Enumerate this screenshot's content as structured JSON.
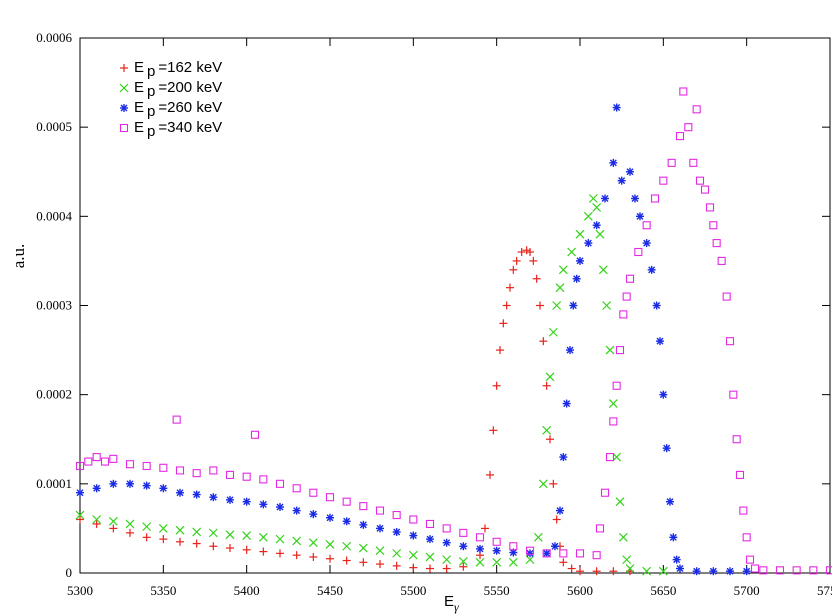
{
  "chart_data": {
    "type": "scatter",
    "xlabel": "E",
    "xlabel_sub": "γ",
    "ylabel": "a.u.",
    "xlim": [
      5300,
      5750
    ],
    "ylim": [
      0,
      0.0006
    ],
    "x_ticks": [
      "5300",
      "5350",
      "5400",
      "5450",
      "5500",
      "5550",
      "5600",
      "5650",
      "5700",
      "5750"
    ],
    "y_ticks": [
      "0",
      "0.0001",
      "0.0002",
      "0.0003",
      "0.0004",
      "0.0005",
      "0.0006"
    ],
    "grid": false,
    "legend_position": "top-left",
    "series": [
      {
        "name": "=162 keV",
        "legend_main": "E",
        "legend_sub": "p",
        "legend_suffix": "=162 keV",
        "color": "#e8211b",
        "marker": "plus",
        "points": [
          [
            5300,
            6e-05
          ],
          [
            5310,
            5.5e-05
          ],
          [
            5320,
            5e-05
          ],
          [
            5330,
            4.5e-05
          ],
          [
            5340,
            4e-05
          ],
          [
            5350,
            3.8e-05
          ],
          [
            5360,
            3.5e-05
          ],
          [
            5370,
            3.3e-05
          ],
          [
            5380,
            3e-05
          ],
          [
            5390,
            2.8e-05
          ],
          [
            5400,
            2.6e-05
          ],
          [
            5410,
            2.4e-05
          ],
          [
            5420,
            2.2e-05
          ],
          [
            5430,
            2e-05
          ],
          [
            5440,
            1.8e-05
          ],
          [
            5450,
            1.6e-05
          ],
          [
            5460,
            1.4e-05
          ],
          [
            5470,
            1.2e-05
          ],
          [
            5480,
            1e-05
          ],
          [
            5490,
            8e-06
          ],
          [
            5500,
            6e-06
          ],
          [
            5510,
            5e-06
          ],
          [
            5520,
            5e-06
          ],
          [
            5530,
            7e-06
          ],
          [
            5540,
            2e-05
          ],
          [
            5543,
            5e-05
          ],
          [
            5546,
            0.00011
          ],
          [
            5548,
            0.00016
          ],
          [
            5550,
            0.00021
          ],
          [
            5552,
            0.00025
          ],
          [
            5554,
            0.00028
          ],
          [
            5556,
            0.0003
          ],
          [
            5558,
            0.00032
          ],
          [
            5560,
            0.00034
          ],
          [
            5562,
            0.00035
          ],
          [
            5565,
            0.00036
          ],
          [
            5568,
            0.000362
          ],
          [
            5570,
            0.00036
          ],
          [
            5572,
            0.00035
          ],
          [
            5574,
            0.00033
          ],
          [
            5576,
            0.0003
          ],
          [
            5578,
            0.00026
          ],
          [
            5580,
            0.00021
          ],
          [
            5582,
            0.00015
          ],
          [
            5584,
            0.0001
          ],
          [
            5586,
            6e-05
          ],
          [
            5588,
            3e-05
          ],
          [
            5590,
            1.2e-05
          ],
          [
            5595,
            5e-06
          ],
          [
            5600,
            2e-06
          ],
          [
            5610,
            2e-06
          ],
          [
            5620,
            2e-06
          ],
          [
            5630,
            2e-06
          ]
        ]
      },
      {
        "name": "=200 keV",
        "legend_main": "E",
        "legend_sub": "p",
        "legend_suffix": "=200 keV",
        "color": "#35d21a",
        "marker": "x",
        "points": [
          [
            5300,
            6.5e-05
          ],
          [
            5310,
            6e-05
          ],
          [
            5320,
            5.8e-05
          ],
          [
            5330,
            5.5e-05
          ],
          [
            5340,
            5.2e-05
          ],
          [
            5350,
            5e-05
          ],
          [
            5360,
            4.8e-05
          ],
          [
            5370,
            4.6e-05
          ],
          [
            5380,
            4.5e-05
          ],
          [
            5390,
            4.3e-05
          ],
          [
            5400,
            4.2e-05
          ],
          [
            5410,
            4e-05
          ],
          [
            5420,
            3.8e-05
          ],
          [
            5430,
            3.6e-05
          ],
          [
            5440,
            3.4e-05
          ],
          [
            5450,
            3.2e-05
          ],
          [
            5460,
            3e-05
          ],
          [
            5470,
            2.8e-05
          ],
          [
            5480,
            2.5e-05
          ],
          [
            5490,
            2.2e-05
          ],
          [
            5500,
            2e-05
          ],
          [
            5510,
            1.8e-05
          ],
          [
            5520,
            1.5e-05
          ],
          [
            5530,
            1.3e-05
          ],
          [
            5540,
            1.2e-05
          ],
          [
            5550,
            1.2e-05
          ],
          [
            5560,
            1.2e-05
          ],
          [
            5570,
            1.5e-05
          ],
          [
            5575,
            4e-05
          ],
          [
            5578,
            0.0001
          ],
          [
            5580,
            0.00016
          ],
          [
            5582,
            0.00022
          ],
          [
            5584,
            0.00027
          ],
          [
            5586,
            0.0003
          ],
          [
            5588,
            0.00032
          ],
          [
            5590,
            0.00034
          ],
          [
            5595,
            0.00036
          ],
          [
            5600,
            0.00038
          ],
          [
            5605,
            0.0004
          ],
          [
            5608,
            0.00042
          ],
          [
            5610,
            0.00041
          ],
          [
            5612,
            0.00038
          ],
          [
            5614,
            0.00034
          ],
          [
            5616,
            0.0003
          ],
          [
            5618,
            0.00025
          ],
          [
            5620,
            0.00019
          ],
          [
            5622,
            0.00013
          ],
          [
            5624,
            8e-05
          ],
          [
            5626,
            4e-05
          ],
          [
            5628,
            1.5e-05
          ],
          [
            5630,
            5e-06
          ],
          [
            5640,
            2e-06
          ],
          [
            5650,
            2e-06
          ]
        ]
      },
      {
        "name": "=260 keV",
        "legend_main": "E",
        "legend_sub": "p",
        "legend_suffix": "=260 keV",
        "color": "#1a2be6",
        "marker": "star",
        "points": [
          [
            5300,
            9e-05
          ],
          [
            5310,
            9.5e-05
          ],
          [
            5320,
            0.0001
          ],
          [
            5330,
            0.0001
          ],
          [
            5340,
            9.8e-05
          ],
          [
            5350,
            9.5e-05
          ],
          [
            5360,
            9e-05
          ],
          [
            5370,
            8.8e-05
          ],
          [
            5380,
            8.5e-05
          ],
          [
            5390,
            8.2e-05
          ],
          [
            5400,
            8e-05
          ],
          [
            5410,
            7.7e-05
          ],
          [
            5420,
            7.4e-05
          ],
          [
            5430,
            7e-05
          ],
          [
            5440,
            6.6e-05
          ],
          [
            5450,
            6.2e-05
          ],
          [
            5460,
            5.8e-05
          ],
          [
            5470,
            5.4e-05
          ],
          [
            5480,
            5e-05
          ],
          [
            5490,
            4.6e-05
          ],
          [
            5500,
            4.2e-05
          ],
          [
            5510,
            3.8e-05
          ],
          [
            5520,
            3.4e-05
          ],
          [
            5530,
            3e-05
          ],
          [
            5540,
            2.7e-05
          ],
          [
            5550,
            2.5e-05
          ],
          [
            5560,
            2.3e-05
          ],
          [
            5570,
            2.2e-05
          ],
          [
            5580,
            2.2e-05
          ],
          [
            5585,
            3e-05
          ],
          [
            5588,
            7e-05
          ],
          [
            5590,
            0.00013
          ],
          [
            5592,
            0.00019
          ],
          [
            5594,
            0.00025
          ],
          [
            5596,
            0.0003
          ],
          [
            5598,
            0.00033
          ],
          [
            5600,
            0.00035
          ],
          [
            5605,
            0.00037
          ],
          [
            5610,
            0.00039
          ],
          [
            5615,
            0.00042
          ],
          [
            5620,
            0.00046
          ],
          [
            5622,
            0.000522
          ],
          [
            5625,
            0.00044
          ],
          [
            5630,
            0.00045
          ],
          [
            5633,
            0.00042
          ],
          [
            5636,
            0.0004
          ],
          [
            5640,
            0.00037
          ],
          [
            5643,
            0.00034
          ],
          [
            5646,
            0.0003
          ],
          [
            5648,
            0.00026
          ],
          [
            5650,
            0.0002
          ],
          [
            5652,
            0.00014
          ],
          [
            5654,
            8e-05
          ],
          [
            5656,
            4e-05
          ],
          [
            5658,
            1.5e-05
          ],
          [
            5660,
            5e-06
          ],
          [
            5670,
            2e-06
          ],
          [
            5680,
            2e-06
          ],
          [
            5690,
            2e-06
          ],
          [
            5700,
            2e-06
          ]
        ]
      },
      {
        "name": "=340 keV",
        "legend_main": "E",
        "legend_sub": "p",
        "legend_suffix": "=340 keV",
        "color": "#e329e3",
        "marker": "square",
        "points": [
          [
            5300,
            0.00012
          ],
          [
            5305,
            0.000125
          ],
          [
            5310,
            0.00013
          ],
          [
            5315,
            0.000125
          ],
          [
            5320,
            0.000128
          ],
          [
            5330,
            0.000122
          ],
          [
            5340,
            0.00012
          ],
          [
            5350,
            0.000118
          ],
          [
            5358,
            0.000172
          ],
          [
            5360,
            0.000115
          ],
          [
            5370,
            0.000112
          ],
          [
            5380,
            0.000115
          ],
          [
            5390,
            0.00011
          ],
          [
            5400,
            0.000108
          ],
          [
            5405,
            0.000155
          ],
          [
            5410,
            0.000105
          ],
          [
            5420,
            0.0001
          ],
          [
            5430,
            9.5e-05
          ],
          [
            5440,
            9e-05
          ],
          [
            5450,
            8.5e-05
          ],
          [
            5460,
            8e-05
          ],
          [
            5470,
            7.5e-05
          ],
          [
            5480,
            7e-05
          ],
          [
            5490,
            6.5e-05
          ],
          [
            5500,
            6e-05
          ],
          [
            5510,
            5.5e-05
          ],
          [
            5520,
            5e-05
          ],
          [
            5530,
            4.5e-05
          ],
          [
            5540,
            4e-05
          ],
          [
            5550,
            3.5e-05
          ],
          [
            5560,
            3e-05
          ],
          [
            5570,
            2.5e-05
          ],
          [
            5580,
            2.2e-05
          ],
          [
            5590,
            2.2e-05
          ],
          [
            5600,
            2.2e-05
          ],
          [
            5610,
            2e-05
          ],
          [
            5612,
            5e-05
          ],
          [
            5615,
            9e-05
          ],
          [
            5618,
            0.00013
          ],
          [
            5620,
            0.00017
          ],
          [
            5622,
            0.00021
          ],
          [
            5624,
            0.00025
          ],
          [
            5626,
            0.00029
          ],
          [
            5628,
            0.00031
          ],
          [
            5630,
            0.00033
          ],
          [
            5635,
            0.00036
          ],
          [
            5640,
            0.00039
          ],
          [
            5645,
            0.00042
          ],
          [
            5650,
            0.00044
          ],
          [
            5655,
            0.00046
          ],
          [
            5660,
            0.00049
          ],
          [
            5662,
            0.00054
          ],
          [
            5665,
            0.0005
          ],
          [
            5668,
            0.00046
          ],
          [
            5670,
            0.00052
          ],
          [
            5672,
            0.00044
          ],
          [
            5675,
            0.00043
          ],
          [
            5678,
            0.00041
          ],
          [
            5680,
            0.00039
          ],
          [
            5682,
            0.00037
          ],
          [
            5685,
            0.00035
          ],
          [
            5688,
            0.00031
          ],
          [
            5690,
            0.00026
          ],
          [
            5692,
            0.0002
          ],
          [
            5694,
            0.00015
          ],
          [
            5696,
            0.00011
          ],
          [
            5698,
            7e-05
          ],
          [
            5700,
            4e-05
          ],
          [
            5702,
            1.5e-05
          ],
          [
            5705,
            5e-06
          ],
          [
            5710,
            3e-06
          ],
          [
            5720,
            3e-06
          ],
          [
            5730,
            3e-06
          ],
          [
            5740,
            3e-06
          ],
          [
            5750,
            3e-06
          ]
        ]
      }
    ]
  }
}
